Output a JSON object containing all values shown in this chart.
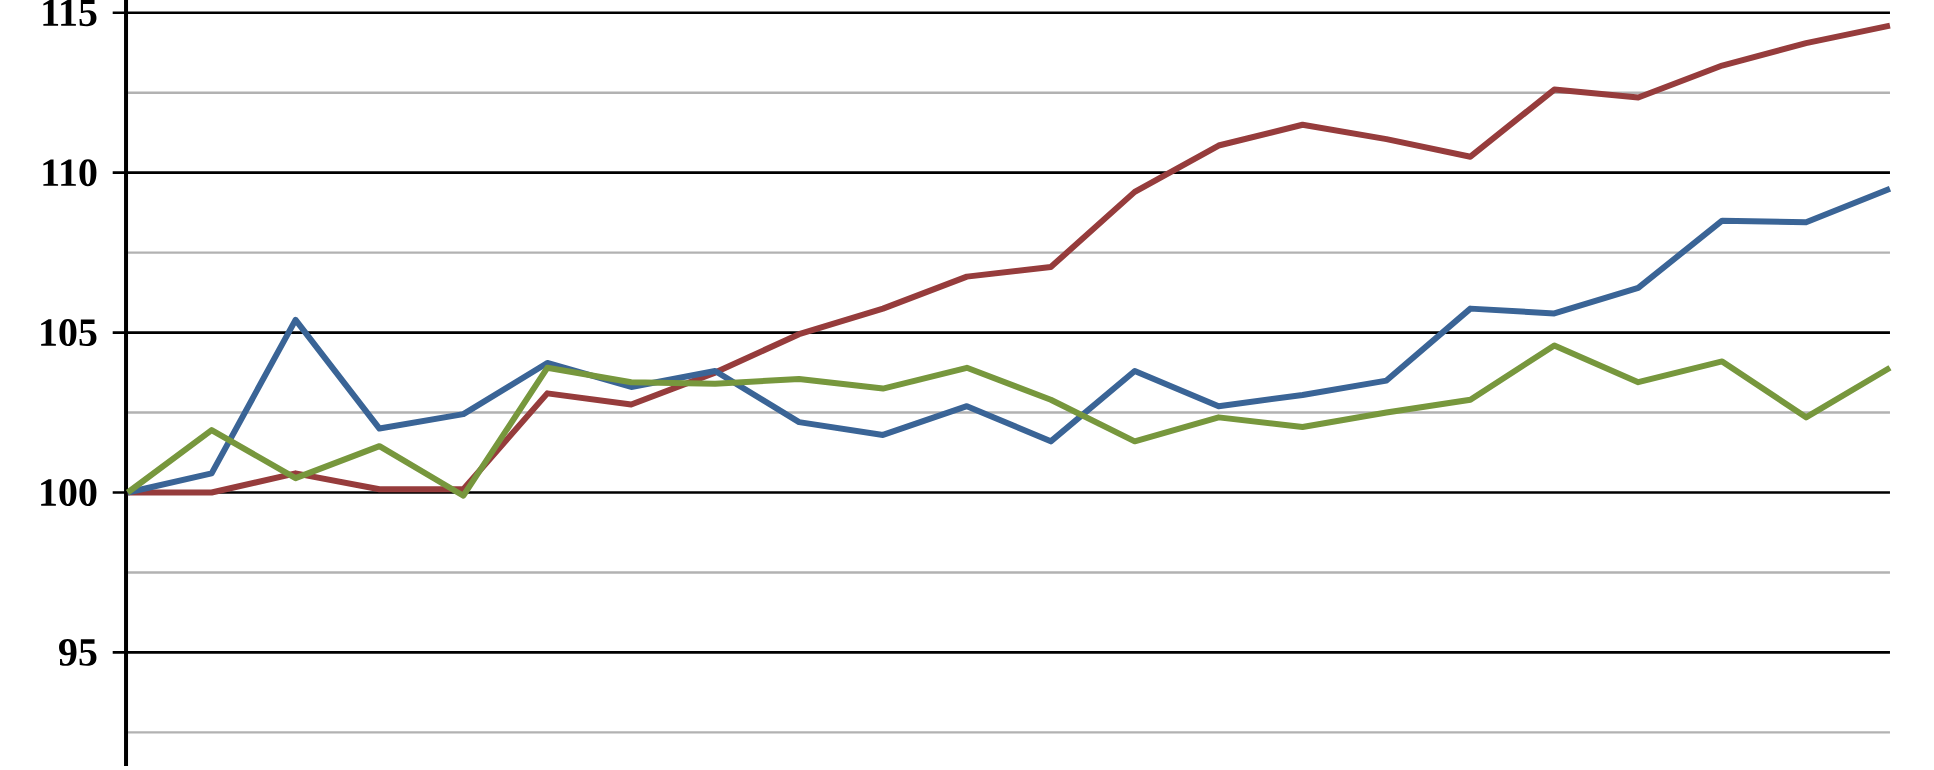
{
  "chart_data": {
    "type": "line",
    "categories": [
      null,
      null,
      null,
      null,
      null,
      null,
      null,
      null,
      null,
      null,
      null,
      null,
      null,
      null,
      null,
      null,
      null,
      null,
      null,
      null,
      null,
      null
    ],
    "series": [
      {
        "color": "#963c3c",
        "values": [
          100,
          100,
          100.6,
          100.1,
          100.1,
          103.1,
          102.75,
          103.75,
          104.95,
          105.75,
          106.75,
          107.05,
          109.4,
          110.85,
          111.5,
          111.05,
          110.5,
          112.6,
          112.35,
          113.35,
          114.05,
          114.6
        ]
      },
      {
        "color": "#3a6496",
        "values": [
          100,
          100.6,
          105.4,
          102,
          102.45,
          104.05,
          103.3,
          103.8,
          102.2,
          101.8,
          102.7,
          101.6,
          103.8,
          102.7,
          103.05,
          103.5,
          105.75,
          105.6,
          106.4,
          108.5,
          108.45,
          109.5
        ]
      },
      {
        "color": "#77973d",
        "values": [
          100,
          101.95,
          100.45,
          101.45,
          99.9,
          103.9,
          103.45,
          103.4,
          103.55,
          103.25,
          103.9,
          102.9,
          101.6,
          102.35,
          102.05,
          102.5,
          102.9,
          104.6,
          103.45,
          104.1,
          102.35,
          103.9
        ]
      }
    ],
    "ylim": [
      91.45,
      115.4
    ],
    "yticks": [
      {
        "value": 92.5,
        "label": null
      },
      95,
      {
        "value": 97.5,
        "label": null
      },
      100,
      {
        "value": 102.5,
        "label": null
      },
      105,
      {
        "value": 107.5,
        "label": null
      },
      110,
      {
        "value": 112.5,
        "label": null
      },
      115
    ],
    "grid": "y"
  }
}
